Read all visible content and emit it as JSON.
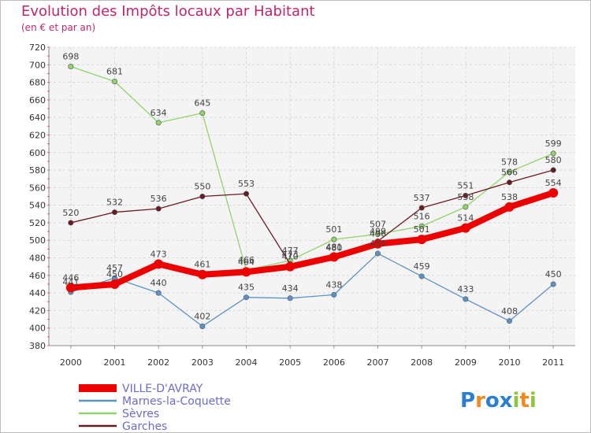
{
  "header": {
    "title": "Evolution des Impôts locaux par Habitant",
    "subtitle": "(en € et par an)"
  },
  "logo": {
    "text": "Proxiti",
    "letters": [
      "P",
      "r",
      "o",
      "x",
      "i",
      "t",
      "i"
    ],
    "colors": [
      "#2a7fd0",
      "#f08a1c",
      "#2a7fd0",
      "#2a7fd0",
      "#8cc63f",
      "#f08a1c",
      "#8cc63f"
    ]
  },
  "chart_data": {
    "type": "line",
    "title": "Evolution des Impôts locaux par Habitant",
    "subtitle": "(en € et par an)",
    "x": [
      "2000",
      "2001",
      "2002",
      "2003",
      "2004",
      "2005",
      "2006",
      "2007",
      "2008",
      "2009",
      "2010",
      "2011"
    ],
    "ylim": [
      380,
      720
    ],
    "yticks": [
      380,
      400,
      420,
      440,
      460,
      480,
      500,
      520,
      540,
      560,
      580,
      600,
      620,
      640,
      660,
      680,
      700,
      720
    ],
    "grid": true,
    "legend_position": "bottom-left",
    "series": [
      {
        "name": "VILLE-D'AVRAY",
        "color": "#ee0000",
        "values": [
          446,
          450,
          473,
          461,
          464,
          470,
          481,
          496,
          501,
          514,
          538,
          554
        ],
        "label_color": "#6c6cc8"
      },
      {
        "name": "Marnes-la-Coquette",
        "color": "#5b93c7",
        "values": [
          441,
          457,
          440,
          402,
          435,
          434,
          438,
          485,
          459,
          433,
          408,
          450
        ],
        "label_color": "#6c6cc8"
      },
      {
        "name": "Sèvres",
        "color": "#8fd46b",
        "values": [
          698,
          681,
          634,
          645,
          466,
          477,
          501,
          507,
          516,
          538,
          578,
          599
        ],
        "label_color": "#6c6cc8"
      },
      {
        "name": "Garches",
        "color": "#6b1a22",
        "values": [
          520,
          532,
          536,
          550,
          553,
          473,
          480,
          499,
          537,
          551,
          566,
          580
        ],
        "label_color": "#6c6cc8"
      }
    ]
  }
}
